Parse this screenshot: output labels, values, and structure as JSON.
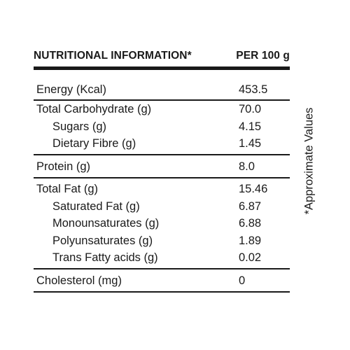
{
  "header": {
    "left": "NUTRITIONAL INFORMATION*",
    "right": "PER 100 g"
  },
  "rows": [
    {
      "label": "Energy (Kcal)",
      "value": "453.5"
    },
    {
      "label": "Total Carbohydrate  (g)",
      "value": "70.0"
    },
    {
      "label": "Sugars (g)",
      "value": "4.15"
    },
    {
      "label": "Dietary Fibre (g)",
      "value": "1.45"
    },
    {
      "label": "Protein (g)",
      "value": "8.0"
    },
    {
      "label": "Total Fat (g)",
      "value": "15.46"
    },
    {
      "label": "Saturated Fat (g)",
      "value": "6.87"
    },
    {
      "label": "Monounsaturates (g)",
      "value": "6.88"
    },
    {
      "label": "Polyunsaturates (g)",
      "value": "1.89"
    },
    {
      "label": "Trans Fatty acids (g)",
      "value": "0.02"
    },
    {
      "label": "Cholesterol (mg)",
      "value": "0"
    }
  ],
  "footnote": "*Approximate Values",
  "colors": {
    "text": "#1a1a1a",
    "background": "#ffffff"
  }
}
